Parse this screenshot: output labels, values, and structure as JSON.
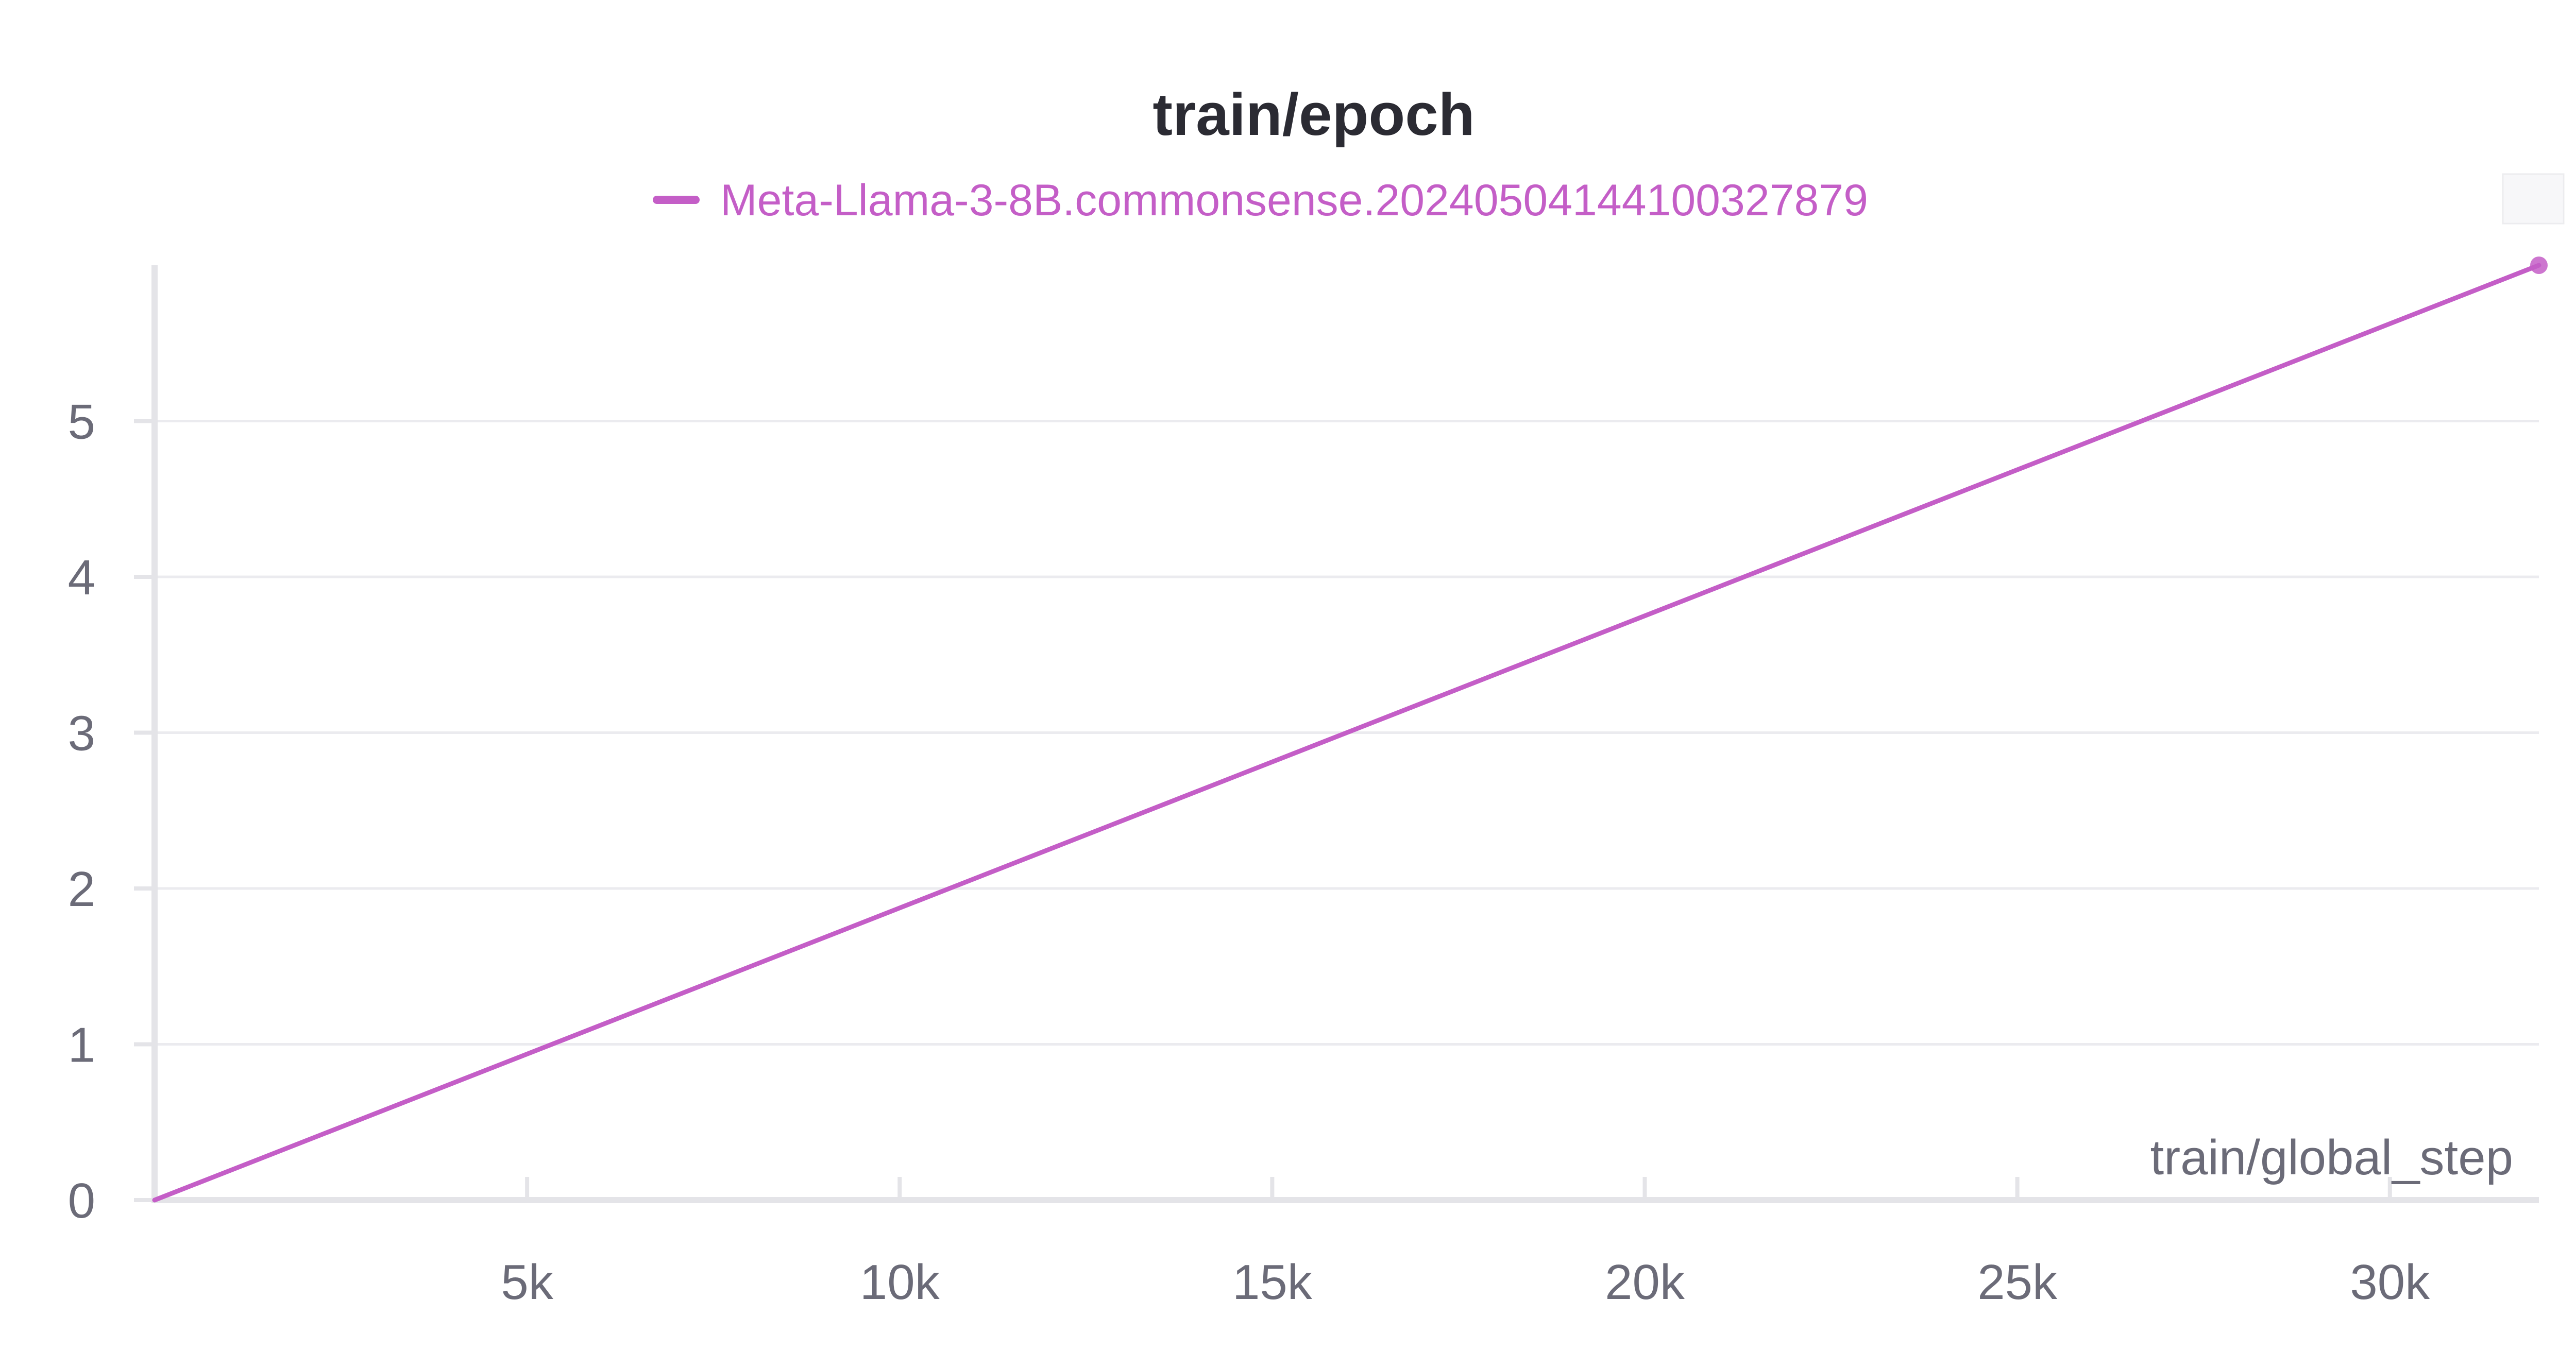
{
  "colors": {
    "series": "#c45ec7",
    "grid": "#ebebef",
    "axis": "#e4e4e8",
    "tick_text": "#6b6b78",
    "title": "#2b2b33"
  },
  "chart_data": {
    "type": "line",
    "title": "train/epoch",
    "xlabel": "train/global_step",
    "ylabel": "",
    "xlim": [
      0,
      32000
    ],
    "ylim": [
      0,
      6
    ],
    "xticks": [
      5000,
      10000,
      15000,
      20000,
      25000,
      30000
    ],
    "xtick_labels": [
      "5k",
      "10k",
      "15k",
      "20k",
      "25k",
      "30k"
    ],
    "yticks": [
      0,
      1,
      2,
      3,
      4,
      5
    ],
    "ytick_labels": [
      "0",
      "1",
      "2",
      "3",
      "4",
      "5"
    ],
    "grid": true,
    "legend_position": "top-center",
    "series": [
      {
        "name": "Meta-Llama-3-8B.commonsense.20240504144100327879",
        "color": "#c45ec7",
        "x": [
          0,
          32000
        ],
        "y": [
          0,
          6
        ]
      }
    ]
  }
}
